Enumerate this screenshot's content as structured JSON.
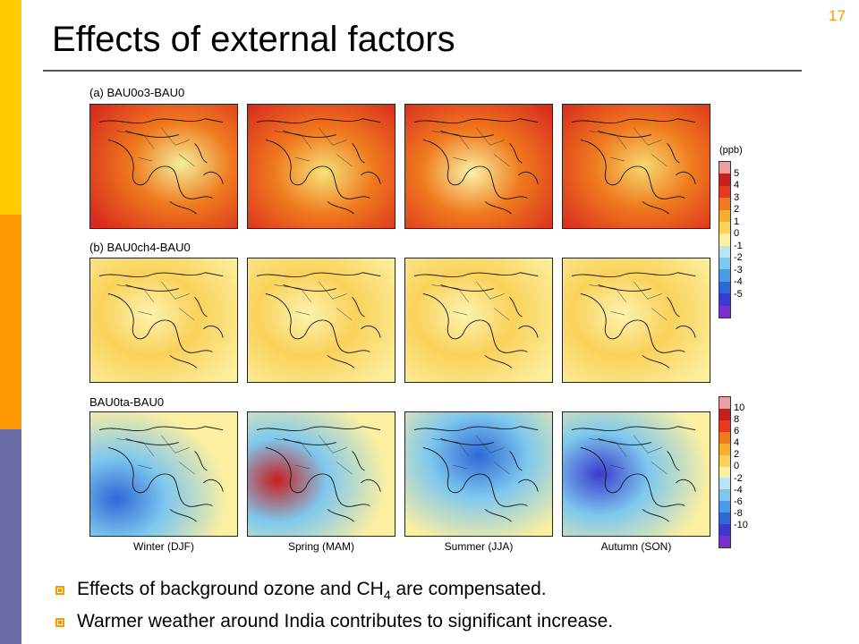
{
  "slide": {
    "title": "Effects of external factors",
    "number": "17"
  },
  "figure": {
    "rows": [
      {
        "label": "(a) BAU0o3-BAU0",
        "pattern": "positive-ozone"
      },
      {
        "label": "(b) BAU0ch4-BAU0",
        "pattern": "weak-positive"
      },
      {
        "label": "BAU0ta-BAU0",
        "pattern": "temperature"
      }
    ],
    "seasons": [
      "Winter (DJF)",
      "Spring (MAM)",
      "Summer (JJA)",
      "Autumn (SON)"
    ],
    "colorbar_top": {
      "unit": "(ppb)",
      "ticks": [
        "5",
        "4",
        "3",
        "2",
        "1",
        "0",
        "-1",
        "-2",
        "-3",
        "-4",
        "-5"
      ],
      "colors": [
        "#E8A0A0",
        "#C81E1E",
        "#E83A1E",
        "#F07A1E",
        "#F7AE2E",
        "#FAD25A",
        "#FCF0A0",
        "#B8E4F4",
        "#7EC8EE",
        "#4A9CE6",
        "#2E68D6",
        "#3A3ACE",
        "#7A30D0"
      ]
    },
    "colorbar_bottom": {
      "ticks": [
        "10",
        "8",
        "6",
        "4",
        "2",
        "0",
        "-2",
        "-4",
        "-6",
        "-8",
        "-10"
      ],
      "colors": [
        "#E8A0A0",
        "#C81E1E",
        "#E83A1E",
        "#F07A1E",
        "#F7AE2E",
        "#FAD25A",
        "#FCF0A0",
        "#B8E4F4",
        "#7EC8EE",
        "#4A9CE6",
        "#2E68D6",
        "#3A3ACE",
        "#7A30D0"
      ]
    }
  },
  "bullets": [
    {
      "text_before": "Effects of background ozone and CH",
      "sub": "4",
      "text_after": " are compensated."
    },
    {
      "text_before": "Warmer weather around India contributes to significant increase.",
      "sub": "",
      "text_after": ""
    }
  ],
  "colors": {
    "accent_yellow": "#FFCC00",
    "accent_orange": "#FF9900",
    "accent_purple": "#6B6BA8"
  }
}
